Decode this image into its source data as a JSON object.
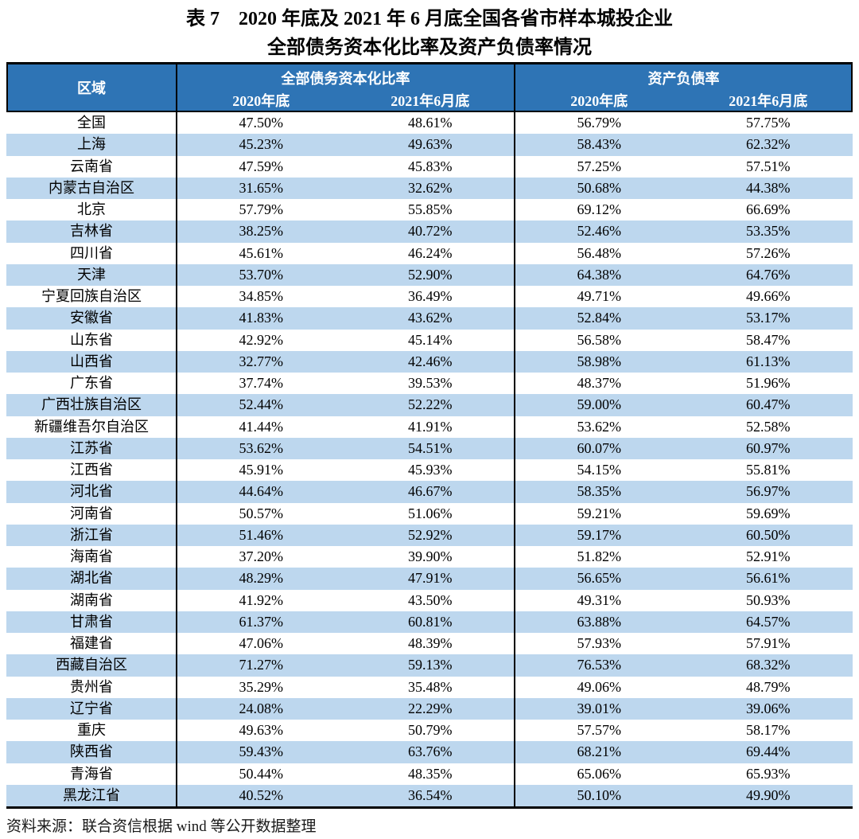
{
  "title": {
    "line1": "表 7　2020 年底及 2021 年 6 月底全国各省市样本城投企业",
    "line2": "全部债务资本化比率及资产负债率情况"
  },
  "table": {
    "region_header": "区域",
    "group1_header": "全部债务资本化比率",
    "group2_header": "资产负债率",
    "sub_headers": [
      "2020年底",
      "2021年6月底",
      "2020年底",
      "2021年6月底"
    ],
    "rows": [
      {
        "region": "全国",
        "values": [
          "47.50%",
          "48.61%",
          "56.79%",
          "57.75%"
        ]
      },
      {
        "region": "上海",
        "values": [
          "45.23%",
          "49.63%",
          "58.43%",
          "62.32%"
        ]
      },
      {
        "region": "云南省",
        "values": [
          "47.59%",
          "45.83%",
          "57.25%",
          "57.51%"
        ]
      },
      {
        "region": "内蒙古自治区",
        "values": [
          "31.65%",
          "32.62%",
          "50.68%",
          "44.38%"
        ]
      },
      {
        "region": "北京",
        "values": [
          "57.79%",
          "55.85%",
          "69.12%",
          "66.69%"
        ]
      },
      {
        "region": "吉林省",
        "values": [
          "38.25%",
          "40.72%",
          "52.46%",
          "53.35%"
        ]
      },
      {
        "region": "四川省",
        "values": [
          "45.61%",
          "46.24%",
          "56.48%",
          "57.26%"
        ]
      },
      {
        "region": "天津",
        "values": [
          "53.70%",
          "52.90%",
          "64.38%",
          "64.76%"
        ]
      },
      {
        "region": "宁夏回族自治区",
        "values": [
          "34.85%",
          "36.49%",
          "49.71%",
          "49.66%"
        ]
      },
      {
        "region": "安徽省",
        "values": [
          "41.83%",
          "43.62%",
          "52.84%",
          "53.17%"
        ]
      },
      {
        "region": "山东省",
        "values": [
          "42.92%",
          "45.14%",
          "56.58%",
          "58.47%"
        ]
      },
      {
        "region": "山西省",
        "values": [
          "32.77%",
          "42.46%",
          "58.98%",
          "61.13%"
        ]
      },
      {
        "region": "广东省",
        "values": [
          "37.74%",
          "39.53%",
          "48.37%",
          "51.96%"
        ]
      },
      {
        "region": "广西壮族自治区",
        "values": [
          "52.44%",
          "52.22%",
          "59.00%",
          "60.47%"
        ]
      },
      {
        "region": "新疆维吾尔自治区",
        "values": [
          "41.44%",
          "41.91%",
          "53.62%",
          "52.58%"
        ]
      },
      {
        "region": "江苏省",
        "values": [
          "53.62%",
          "54.51%",
          "60.07%",
          "60.97%"
        ]
      },
      {
        "region": "江西省",
        "values": [
          "45.91%",
          "45.93%",
          "54.15%",
          "55.81%"
        ]
      },
      {
        "region": "河北省",
        "values": [
          "44.64%",
          "46.67%",
          "58.35%",
          "56.97%"
        ]
      },
      {
        "region": "河南省",
        "values": [
          "50.57%",
          "51.06%",
          "59.21%",
          "59.69%"
        ]
      },
      {
        "region": "浙江省",
        "values": [
          "51.46%",
          "52.92%",
          "59.17%",
          "60.50%"
        ]
      },
      {
        "region": "海南省",
        "values": [
          "37.20%",
          "39.90%",
          "51.82%",
          "52.91%"
        ]
      },
      {
        "region": "湖北省",
        "values": [
          "48.29%",
          "47.91%",
          "56.65%",
          "56.61%"
        ]
      },
      {
        "region": "湖南省",
        "values": [
          "41.92%",
          "43.50%",
          "49.31%",
          "50.93%"
        ]
      },
      {
        "region": "甘肃省",
        "values": [
          "61.37%",
          "60.81%",
          "63.88%",
          "64.57%"
        ]
      },
      {
        "region": "福建省",
        "values": [
          "47.06%",
          "48.39%",
          "57.93%",
          "57.91%"
        ]
      },
      {
        "region": "西藏自治区",
        "values": [
          "71.27%",
          "59.13%",
          "76.53%",
          "68.32%"
        ]
      },
      {
        "region": "贵州省",
        "values": [
          "35.29%",
          "35.48%",
          "49.06%",
          "48.79%"
        ]
      },
      {
        "region": "辽宁省",
        "values": [
          "24.08%",
          "22.29%",
          "39.01%",
          "39.06%"
        ]
      },
      {
        "region": "重庆",
        "values": [
          "49.63%",
          "50.79%",
          "57.57%",
          "58.17%"
        ]
      },
      {
        "region": "陕西省",
        "values": [
          "59.43%",
          "63.76%",
          "68.21%",
          "69.44%"
        ]
      },
      {
        "region": "青海省",
        "values": [
          "50.44%",
          "48.35%",
          "65.06%",
          "65.93%"
        ]
      },
      {
        "region": "黑龙江省",
        "values": [
          "40.52%",
          "36.54%",
          "50.10%",
          "49.90%"
        ]
      }
    ]
  },
  "footer": {
    "source": "资料来源：联合资信根据 wind 等公开数据整理"
  },
  "colors": {
    "header_bg": "#2E74B5",
    "stripe_bg": "#BDD7EE"
  }
}
